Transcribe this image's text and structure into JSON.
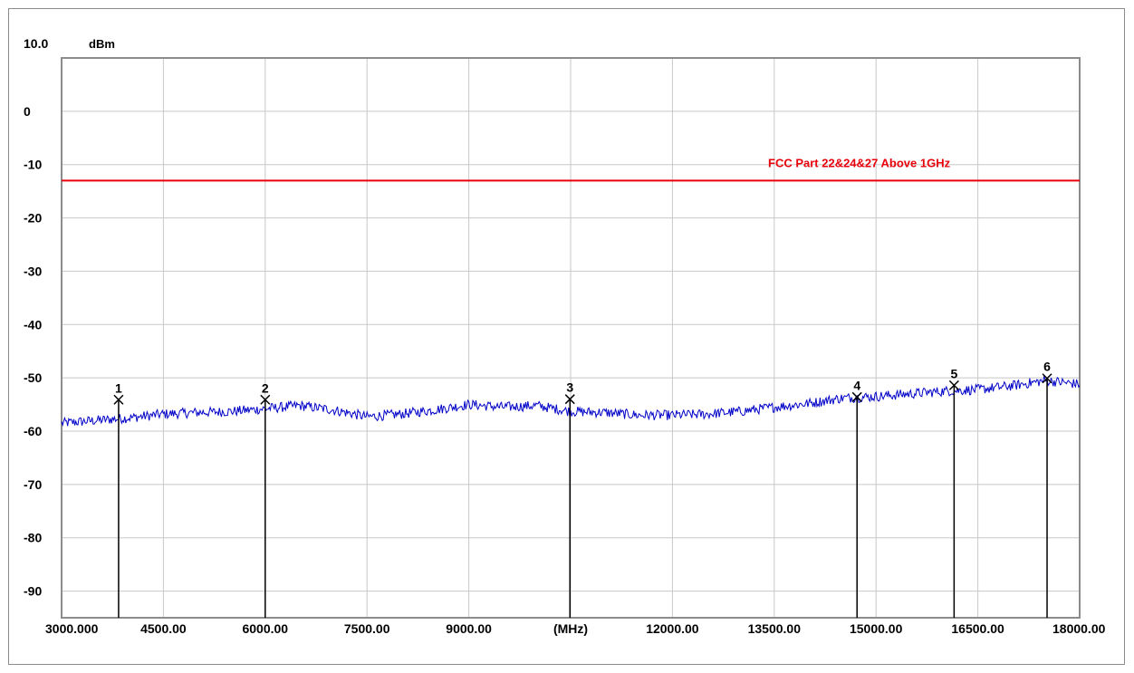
{
  "chart_data": {
    "type": "line",
    "title": "",
    "ylabel": "dBm",
    "xlabel": "(MHz)",
    "xlim": [
      3000,
      18000
    ],
    "ylim": [
      -95,
      10
    ],
    "y_tick_labels": [
      {
        "value": 10,
        "label": "10.0"
      },
      {
        "value": 0,
        "label": "0"
      },
      {
        "value": -10,
        "label": "-10"
      },
      {
        "value": -20,
        "label": "-20"
      },
      {
        "value": -30,
        "label": "-30"
      },
      {
        "value": -40,
        "label": "-40"
      },
      {
        "value": -50,
        "label": "-50"
      },
      {
        "value": -60,
        "label": "-60"
      },
      {
        "value": -70,
        "label": "-70"
      },
      {
        "value": -80,
        "label": "-80"
      },
      {
        "value": -90,
        "label": "-90"
      }
    ],
    "x_tick_labels": [
      {
        "value": 3000,
        "label": "3000.000"
      },
      {
        "value": 4500,
        "label": "4500.00"
      },
      {
        "value": 6000,
        "label": "6000.00"
      },
      {
        "value": 7500,
        "label": "7500.00"
      },
      {
        "value": 9000,
        "label": "9000.00"
      },
      {
        "value": 10500,
        "label": "(MHz)"
      },
      {
        "value": 12000,
        "label": "12000.00"
      },
      {
        "value": 13500,
        "label": "13500.00"
      },
      {
        "value": 15000,
        "label": "15000.00"
      },
      {
        "value": 16500,
        "label": "16500.00"
      },
      {
        "value": 18000,
        "label": "18000.00"
      }
    ],
    "grid": true,
    "limit_line": {
      "label": "FCC Part 22&24&27 Above 1GHz",
      "value": -13,
      "color": "#e8000b"
    },
    "series": [
      {
        "color": "#0000c8",
        "x": [
          3000,
          3500,
          4000,
          4500,
          5000,
          5500,
          6000,
          6500,
          7000,
          7500,
          8000,
          8500,
          9000,
          9500,
          10000,
          10500,
          11000,
          11500,
          12000,
          12500,
          13000,
          13500,
          14000,
          14500,
          15000,
          15500,
          16000,
          16500,
          17000,
          17500,
          18000
        ],
        "y": [
          -58.5,
          -58.0,
          -57.5,
          -56.8,
          -56.5,
          -56.3,
          -55.8,
          -55.2,
          -56.0,
          -57.3,
          -56.8,
          -56.0,
          -55.0,
          -55.5,
          -55.2,
          -56.3,
          -56.5,
          -57.0,
          -57.0,
          -56.8,
          -56.3,
          -55.5,
          -54.8,
          -53.8,
          -53.5,
          -53.0,
          -52.5,
          -52.2,
          -51.5,
          -50.5,
          -51.2
        ]
      }
    ],
    "markers": [
      {
        "label": "1",
        "x": 3840,
        "y": -54.1
      },
      {
        "label": "2",
        "x": 6000,
        "y": -54.1
      },
      {
        "label": "3",
        "x": 10490,
        "y": -54.0
      },
      {
        "label": "4",
        "x": 14720,
        "y": -53.6
      },
      {
        "label": "5",
        "x": 16150,
        "y": -51.4
      },
      {
        "label": "6",
        "x": 17520,
        "y": -50.1
      }
    ],
    "marker_color": "#000000",
    "grid_color": "#c8c8c8",
    "axis_color": "#8c8c8c"
  }
}
